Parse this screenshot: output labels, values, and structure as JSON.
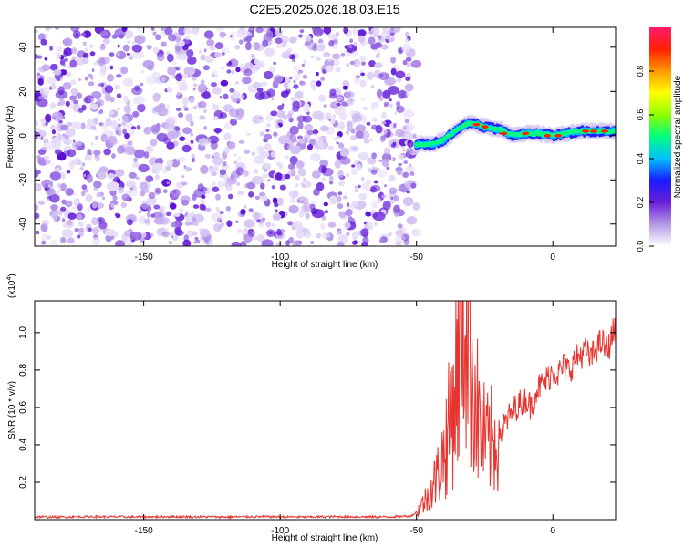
{
  "figure": {
    "title": "C2E5.2025.026.18.03.E15"
  },
  "chart_data": [
    {
      "type": "heatmap",
      "title": "C2E5.2025.026.18.03.E15",
      "xlabel": "Height of straight line (km)",
      "ylabel": "Frequency (Hz)",
      "xlim": [
        -190,
        23
      ],
      "ylim": [
        -50,
        49
      ],
      "xticks": [
        -150,
        -100,
        -50,
        0
      ],
      "yticks": [
        -40,
        -20,
        0,
        20,
        40
      ],
      "grid": false,
      "noise_region_x": [
        -190,
        -50
      ],
      "signal_track": {
        "x": [
          -50,
          -45,
          -40,
          -35,
          -30,
          -25,
          -20,
          -15,
          -10,
          -5,
          0,
          5,
          10,
          15,
          20
        ],
        "frequency": [
          -4,
          -4,
          -2,
          3,
          6,
          4,
          3,
          0,
          1,
          1,
          0,
          1,
          2,
          2,
          2
        ]
      },
      "colorbar": {
        "label": "Normalized spectral amplitude",
        "range": [
          0.0,
          1.0
        ],
        "ticks": [
          "0.0",
          "0.2",
          "0.4",
          "0.6",
          "0.8"
        ],
        "colormap": [
          "#ffffff",
          "#b49be6",
          "#6a1fd8",
          "#1a1aff",
          "#00bfff",
          "#00ff7f",
          "#8fff00",
          "#ffff00",
          "#ff9900",
          "#ff2200",
          "#ff1a6e"
        ]
      }
    },
    {
      "type": "line",
      "xlabel": "Height of straight line (km)",
      "ylabel": "SNR (10 * v/v)",
      "scale_label": "(x10",
      "scale_exponent": "4",
      "scale_close": ")",
      "xlim": [
        -190,
        23
      ],
      "ylim": [
        0,
        1.17
      ],
      "xticks": [
        -150,
        -100,
        -50,
        0
      ],
      "yticks": [
        "0.2",
        "0.4",
        "0.6",
        "0.8",
        "1.0"
      ],
      "grid": false,
      "series": [
        {
          "color": "#e8332e",
          "x": [
            -190,
            -180,
            -170,
            -160,
            -150,
            -140,
            -130,
            -120,
            -110,
            -100,
            -90,
            -80,
            -70,
            -60,
            -52,
            -50,
            -48,
            -46,
            -44,
            -42,
            -40,
            -38,
            -36,
            -34,
            -32,
            -30,
            -28,
            -26,
            -24,
            -22,
            -20,
            -18,
            -16,
            -14,
            -12,
            -10,
            -8,
            -6,
            -4,
            -2,
            0,
            2,
            4,
            6,
            8,
            10,
            12,
            14,
            16,
            18,
            20,
            22,
            23
          ],
          "y": [
            0.015,
            0.014,
            0.016,
            0.015,
            0.014,
            0.016,
            0.015,
            0.014,
            0.016,
            0.015,
            0.014,
            0.016,
            0.015,
            0.015,
            0.02,
            0.04,
            0.08,
            0.12,
            0.18,
            0.25,
            0.35,
            0.5,
            0.7,
            0.95,
            1.17,
            0.9,
            0.6,
            0.45,
            0.4,
            0.42,
            0.45,
            0.5,
            0.55,
            0.6,
            0.62,
            0.65,
            0.6,
            0.7,
            0.72,
            0.75,
            0.8,
            0.78,
            0.82,
            0.8,
            0.85,
            0.88,
            0.9,
            0.86,
            0.92,
            0.95,
            0.9,
            1.0,
            1.02
          ]
        }
      ]
    }
  ]
}
